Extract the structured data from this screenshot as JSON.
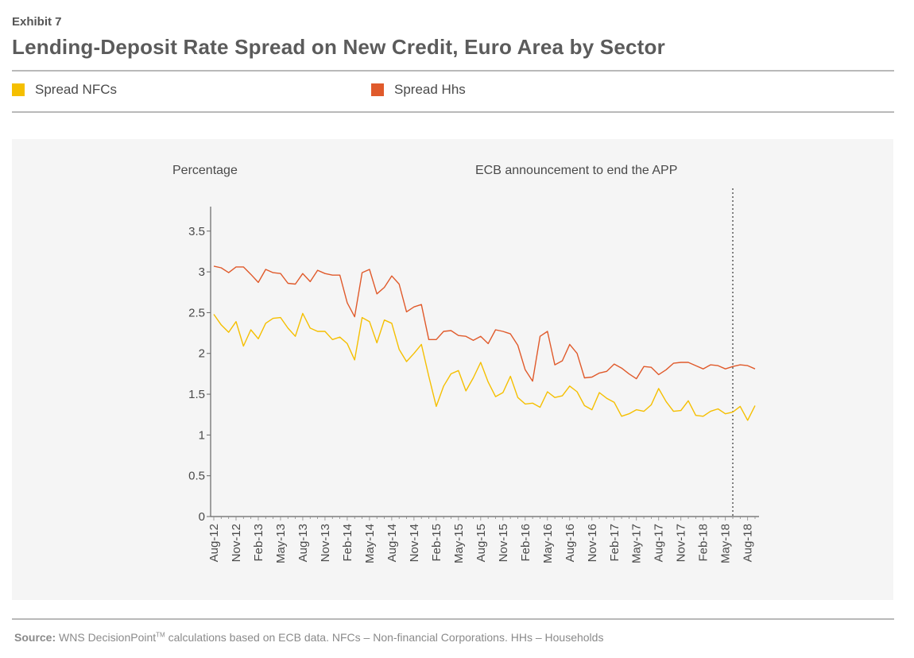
{
  "header": {
    "exhibit": "Exhibit 7",
    "title": "Lending-Deposit Rate Spread on New Credit, Euro Area by Sector"
  },
  "source": {
    "label": "Source:",
    "text_before": "WNS DecisionPoint",
    "trademark": "TM",
    "text_after": " calculations based on ECB data. NFCs – Non-financial Corporations. HHs – Households"
  },
  "chart_data": {
    "type": "line",
    "title": "Lending-Deposit Rate Spread on New Credit, Euro Area by Sector",
    "ylabel": "Percentage",
    "xlabel": "",
    "ylim": [
      0,
      3.8
    ],
    "yticks": [
      0,
      0.5,
      1,
      1.5,
      2,
      2.5,
      3,
      3.5
    ],
    "ytick_labels": [
      "0",
      "0.5",
      "1",
      "1.5",
      "2",
      "2.5",
      "3",
      "3.5"
    ],
    "grid": false,
    "legend_position": "top",
    "xtick_labels": [
      "Aug-12",
      "Nov-12",
      "Feb-13",
      "May-13",
      "Aug-13",
      "Nov-13",
      "Feb-14",
      "May-14",
      "Aug-14",
      "Nov-14",
      "Feb-15",
      "May-15",
      "Aug-15",
      "Nov-15",
      "Feb-16",
      "May-16",
      "Aug-16",
      "Nov-16",
      "Feb-17",
      "May-17",
      "Aug-17",
      "Nov-17",
      "Feb-18",
      "May-18",
      "Aug-18"
    ],
    "x_start": "Aug-12",
    "x_end": "Oct-18",
    "annotation": {
      "text": "ECB announcement to end the APP",
      "at": "Jun-18"
    },
    "series": [
      {
        "name": "Spread NFCs",
        "color": "#f5bf00",
        "values": [
          2.48,
          2.35,
          2.26,
          2.39,
          2.09,
          2.29,
          2.18,
          2.37,
          2.43,
          2.44,
          2.31,
          2.21,
          2.49,
          2.31,
          2.27,
          2.27,
          2.17,
          2.2,
          2.12,
          1.92,
          2.44,
          2.39,
          2.13,
          2.41,
          2.37,
          2.05,
          1.9,
          2.0,
          2.11,
          1.72,
          1.35,
          1.6,
          1.75,
          1.79,
          1.54,
          1.7,
          1.89,
          1.65,
          1.47,
          1.52,
          1.72,
          1.46,
          1.38,
          1.39,
          1.34,
          1.53,
          1.46,
          1.48,
          1.6,
          1.53,
          1.36,
          1.31,
          1.52,
          1.45,
          1.4,
          1.23,
          1.26,
          1.31,
          1.29,
          1.37,
          1.57,
          1.41,
          1.29,
          1.3,
          1.42,
          1.24,
          1.23,
          1.29,
          1.32,
          1.26,
          1.28,
          1.35,
          1.18,
          1.36
        ]
      },
      {
        "name": "Spread Hhs",
        "color": "#e05a2b",
        "values": [
          3.07,
          3.05,
          2.99,
          3.06,
          3.06,
          2.97,
          2.87,
          3.03,
          2.99,
          2.98,
          2.86,
          2.85,
          2.98,
          2.88,
          3.02,
          2.98,
          2.96,
          2.96,
          2.62,
          2.45,
          2.99,
          3.03,
          2.73,
          2.81,
          2.95,
          2.85,
          2.51,
          2.57,
          2.6,
          2.17,
          2.17,
          2.27,
          2.28,
          2.22,
          2.21,
          2.16,
          2.21,
          2.12,
          2.29,
          2.27,
          2.24,
          2.1,
          1.8,
          1.66,
          2.21,
          2.27,
          1.86,
          1.91,
          2.11,
          2.0,
          1.7,
          1.71,
          1.76,
          1.78,
          1.87,
          1.82,
          1.75,
          1.69,
          1.84,
          1.83,
          1.74,
          1.8,
          1.88,
          1.89,
          1.89,
          1.85,
          1.81,
          1.86,
          1.85,
          1.81,
          1.84,
          1.86,
          1.85,
          1.81
        ]
      }
    ]
  }
}
